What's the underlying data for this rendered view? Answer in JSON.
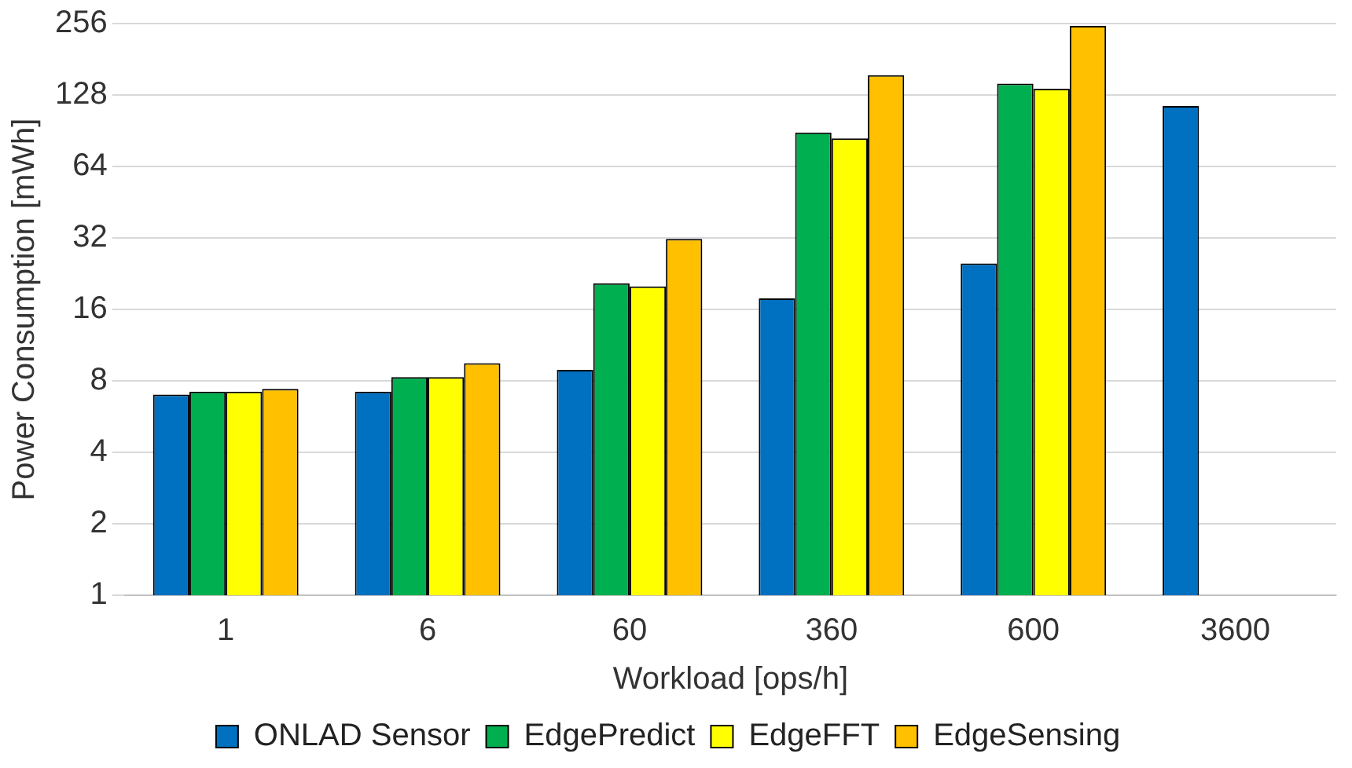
{
  "chart_data": {
    "type": "bar",
    "xlabel": "Workload [ops/h]",
    "ylabel": "Power Consumption [mWh]",
    "categories": [
      "1",
      "6",
      "60",
      "360",
      "600",
      "3600"
    ],
    "series": [
      {
        "name": "ONLAD Sensor",
        "color": "#0070c0",
        "values": [
          7.0,
          7.2,
          8.9,
          17.8,
          25,
          115
        ]
      },
      {
        "name": "EdgePredict",
        "color": "#00b050",
        "values": [
          7.2,
          8.3,
          20.6,
          89,
          143,
          null
        ]
      },
      {
        "name": "EdgeFFT",
        "color": "#ffff00",
        "values": [
          7.2,
          8.3,
          20,
          84,
          136,
          null
        ]
      },
      {
        "name": "EdgeSensing",
        "color": "#ffc000",
        "values": [
          7.4,
          9.5,
          31.7,
          155,
          250,
          null
        ]
      }
    ],
    "log": "y",
    "ylim": [
      1,
      256
    ],
    "yticks": [
      1,
      2,
      4,
      8,
      16,
      32,
      64,
      128,
      256
    ],
    "grid": "y",
    "legend": "bottom"
  }
}
